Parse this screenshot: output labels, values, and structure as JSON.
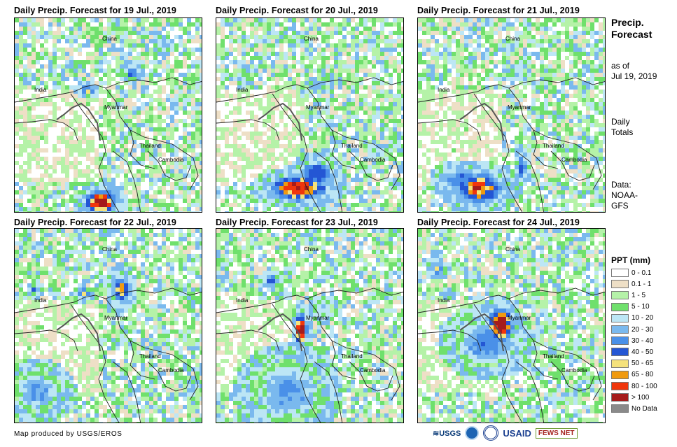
{
  "panels": [
    {
      "title": "Daily Precip. Forecast for 19 Jul., 2019"
    },
    {
      "title": "Daily Precip. Forecast for 20 Jul., 2019"
    },
    {
      "title": "Daily Precip. Forecast for 21 Jul., 2019"
    },
    {
      "title": "Daily Precip. Forecast for 22 Jul., 2019"
    },
    {
      "title": "Daily Precip. Forecast for 23 Jul., 2019"
    },
    {
      "title": "Daily Precip. Forecast for 24 Jul., 2019"
    }
  ],
  "map_labels": {
    "china": "China",
    "india": "India",
    "myanmar": "Myanmar",
    "thailand": "Thailand",
    "cambodia": "Cambodia"
  },
  "sidebar": {
    "title_line1": "Precip.",
    "title_line2": "Forecast",
    "asof_line1": "as of",
    "asof_line2": "Jul 19, 2019",
    "totals_line1": "Daily",
    "totals_line2": "Totals",
    "data_line1": "Data:",
    "data_line2": "NOAA-",
    "data_line3": "GFS"
  },
  "legend": {
    "title": "PPT (mm)",
    "items": [
      {
        "label": "0 - 0.1",
        "color": "#ffffff"
      },
      {
        "label": "0.1 - 1",
        "color": "#eedfc6"
      },
      {
        "label": "1 - 5",
        "color": "#b5f2a8"
      },
      {
        "label": "5 - 10",
        "color": "#6fe06c"
      },
      {
        "label": "10 - 20",
        "color": "#bce6f5"
      },
      {
        "label": "20 - 30",
        "color": "#7ab9ee"
      },
      {
        "label": "30 - 40",
        "color": "#4a90e8"
      },
      {
        "label": "40 - 50",
        "color": "#2456d4"
      },
      {
        "label": "50 - 65",
        "color": "#f5e27c"
      },
      {
        "label": "65 - 80",
        "color": "#f09a10"
      },
      {
        "label": "80 - 100",
        "color": "#f0360c"
      },
      {
        "label": "> 100",
        "color": "#a51c1c"
      },
      {
        "label": "No Data",
        "color": "#8a8a8a"
      }
    ]
  },
  "credit": "Map produced by USGS/EROS",
  "logos": {
    "usgs": "USGS",
    "usaid": "USAID",
    "fewsnet": "FEWS NET"
  }
}
